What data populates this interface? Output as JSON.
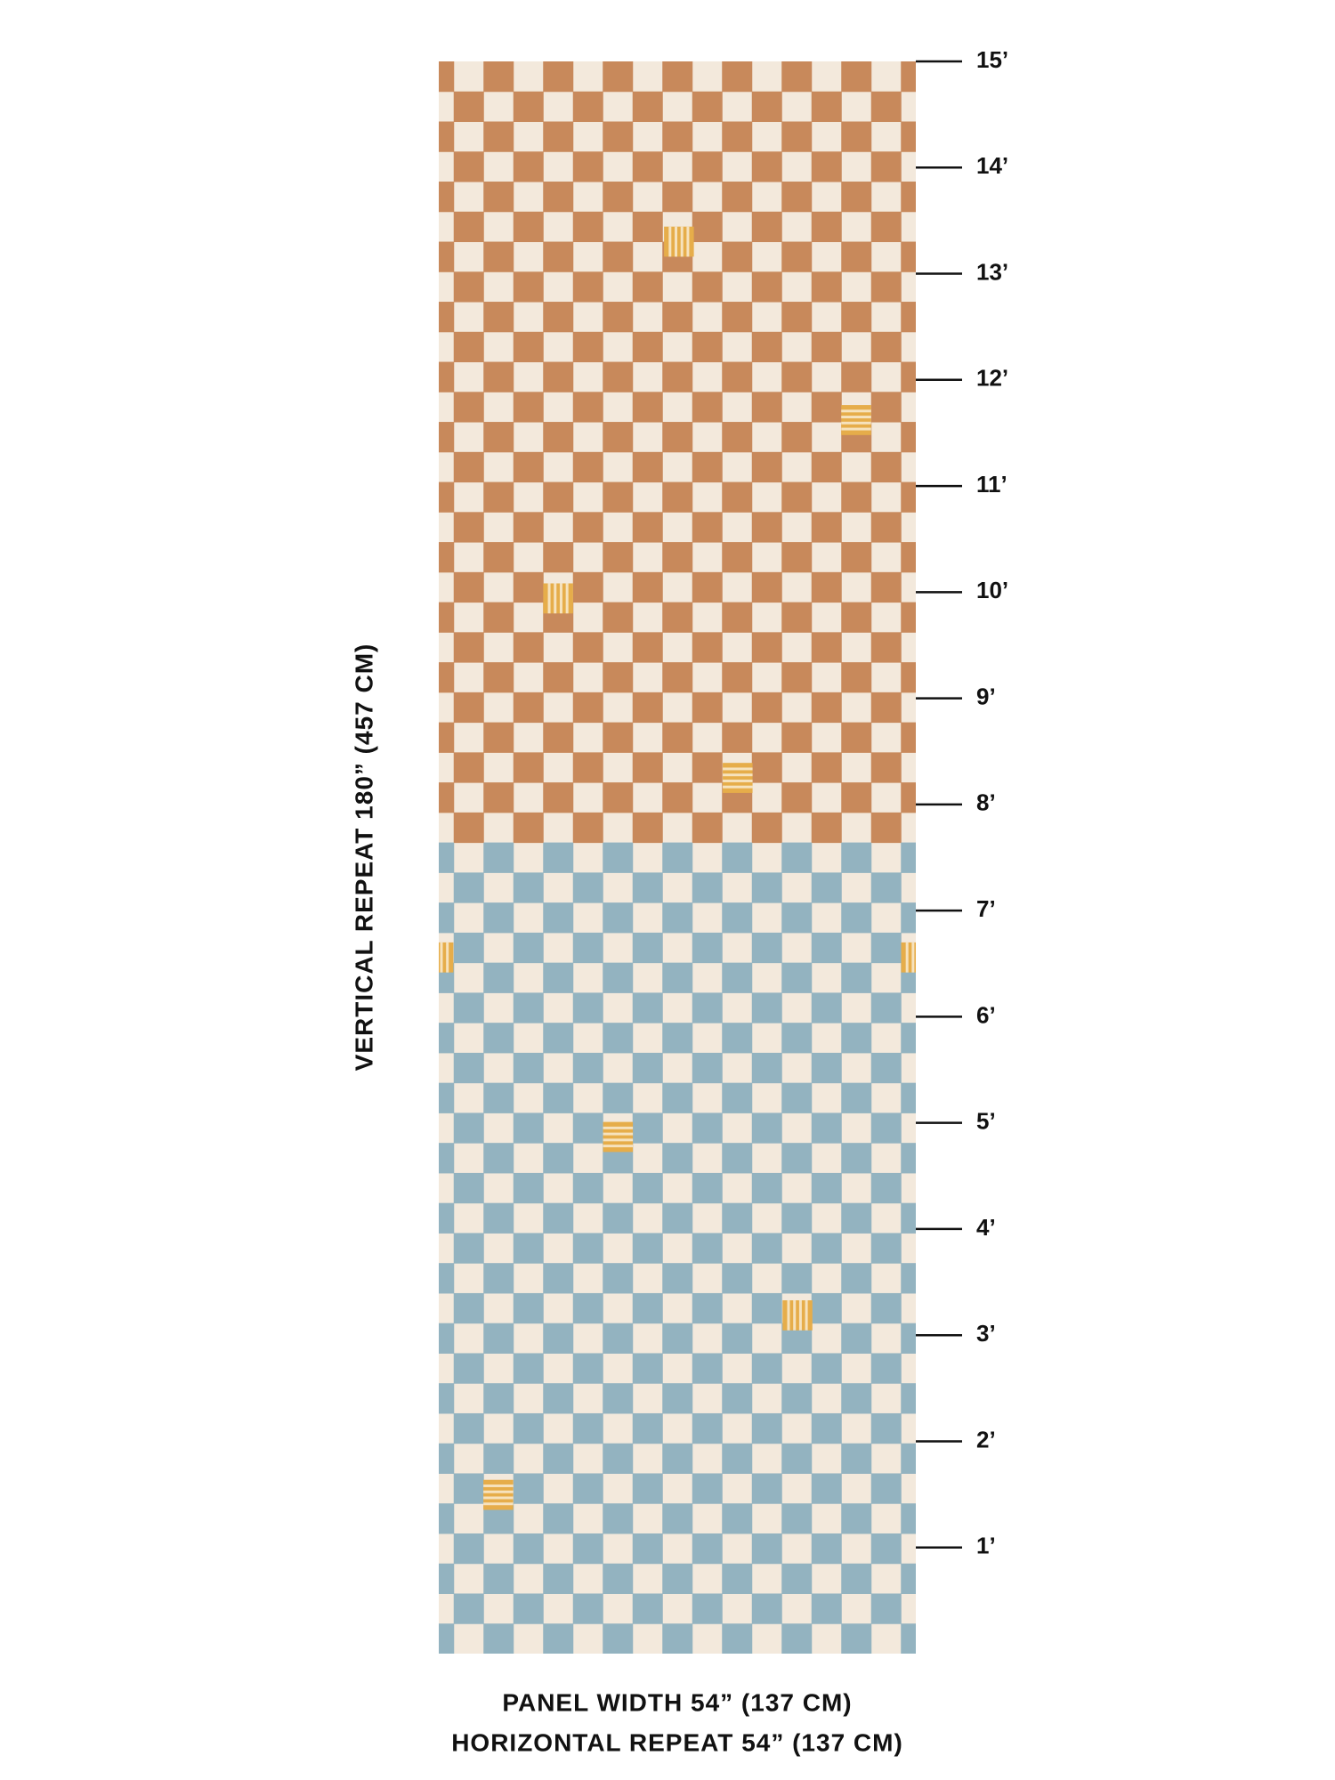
{
  "scale": {
    "ticks": [
      "1’",
      "2’",
      "3’",
      "4’",
      "5’",
      "6’",
      "7’",
      "8’",
      "9’",
      "10’",
      "11’",
      "12’",
      "13’",
      "14’",
      "15’"
    ]
  },
  "vertical_label": "VERTICAL REPEAT 180” (457 CM)",
  "footer": {
    "panel_width": "PANEL WIDTH 54” (137 CM)",
    "horizontal_repeat": "HORIZONTAL REPEAT 54” (137 CM)"
  }
}
